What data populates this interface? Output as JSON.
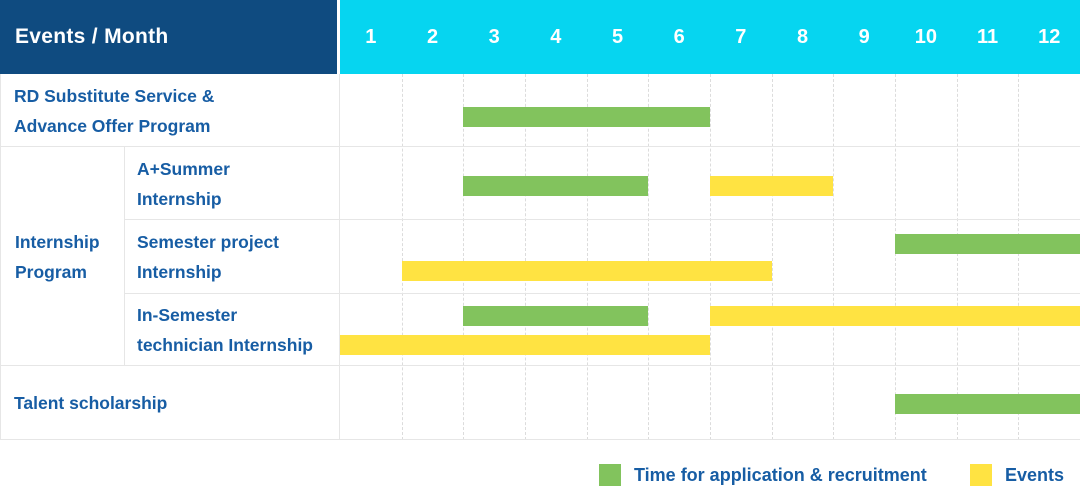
{
  "colors": {
    "navy": "#0f4b80",
    "cyan": "#06d5f0",
    "text_blue": "#175da4",
    "green": "#82c35d",
    "yellow": "#ffe342",
    "gridline": "#dcdcdc",
    "border": "#e6e6e6"
  },
  "header": {
    "title": "Events / Month",
    "months": [
      "1",
      "2",
      "3",
      "4",
      "5",
      "6",
      "7",
      "8",
      "9",
      "10",
      "11",
      "12"
    ]
  },
  "rows": [
    {
      "label_lines": [
        "RD Substitute Service &",
        "Advance Offer Program"
      ]
    },
    {
      "label_lines": [
        "A+Summer",
        "Internship"
      ]
    },
    {
      "label_lines": [
        "Semester project",
        "Internship"
      ]
    },
    {
      "label_lines": [
        "In-Semester",
        "technician Internship"
      ]
    },
    {
      "label_lines": [
        "Talent scholarship"
      ]
    }
  ],
  "group": {
    "label_lines": [
      "Internship",
      "Program"
    ]
  },
  "legend": [
    {
      "label": "Time for application & recruitment",
      "kind": "recruitment",
      "color": "#82c35d"
    },
    {
      "label": "Events",
      "kind": "event",
      "color": "#ffe342"
    }
  ],
  "chart_data": {
    "type": "table",
    "title": "Events / Month",
    "x_axis": {
      "label": "Month",
      "ticks": [
        1,
        2,
        3,
        4,
        5,
        6,
        7,
        8,
        9,
        10,
        11,
        12
      ],
      "range": [
        1,
        12
      ]
    },
    "legend": {
      "recruitment": "Time for application & recruitment",
      "event": "Events"
    },
    "items": [
      {
        "label": "RD Substitute Service & Advance Offer Program",
        "group": "",
        "bars": [
          {
            "kind": "recruitment",
            "from_month": 3,
            "to_month": 6,
            "line": 0
          }
        ]
      },
      {
        "label": "A+Summer Internship",
        "group": "Internship Program",
        "bars": [
          {
            "kind": "recruitment",
            "from_month": 3,
            "to_month": 5,
            "line": 0
          },
          {
            "kind": "event",
            "from_month": 7,
            "to_month": 8,
            "line": 0
          }
        ]
      },
      {
        "label": "Semester project Internship",
        "group": "Internship Program",
        "bars": [
          {
            "kind": "recruitment",
            "from_month": 10,
            "to_month": 12,
            "line": 0
          },
          {
            "kind": "event",
            "from_month": 2,
            "to_month": 7,
            "line": 1
          }
        ]
      },
      {
        "label": "In-Semester technician Internship",
        "group": "Internship Program",
        "bars": [
          {
            "kind": "recruitment",
            "from_month": 3,
            "to_month": 5,
            "line": 0
          },
          {
            "kind": "event",
            "from_month": 7,
            "to_month": 12,
            "line": 0
          },
          {
            "kind": "event",
            "from_month": 1,
            "to_month": 6,
            "line": 1
          }
        ]
      },
      {
        "label": "Talent scholarship",
        "group": "",
        "bars": [
          {
            "kind": "recruitment",
            "from_month": 10,
            "to_month": 12,
            "line": 0
          }
        ]
      }
    ]
  }
}
